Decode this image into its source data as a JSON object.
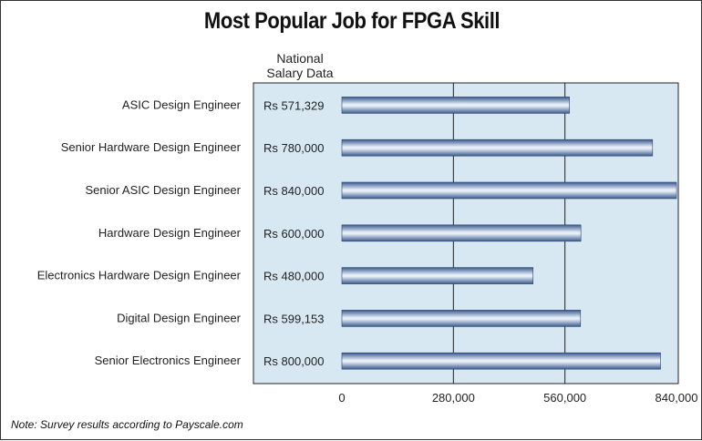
{
  "title": "Most Popular Job for FPGA Skill",
  "column_header": {
    "line1": "National",
    "line2": "Salary Data"
  },
  "footnote": "Note: Survey results according to Payscale.com",
  "colors": {
    "panel_background": "#d8e8f2",
    "bar_dark": "#3a5a8c",
    "bar_light": "#e6eef8",
    "gridline": "#222222"
  },
  "chart_data": {
    "type": "bar",
    "orientation": "horizontal",
    "title": "Most Popular Job for FPGA Skill",
    "categories": [
      "ASIC Design Engineer",
      "Senior Hardware Design Engineer",
      "Senior ASIC Design Engineer",
      "Hardware Design Engineer",
      "Electronics Hardware Design Engineer",
      "Digital Design Engineer",
      "Senior Electronics Engineer"
    ],
    "values": [
      571329,
      780000,
      840000,
      600000,
      480000,
      599153,
      800000
    ],
    "value_labels": [
      "Rs 571,329",
      "Rs 780,000",
      "Rs 840,000",
      "Rs 600,000",
      "Rs 480,000",
      "Rs 599,153",
      "Rs 800,000"
    ],
    "xlim": [
      0,
      840000
    ],
    "xticks": [
      0,
      280000,
      560000,
      840000
    ],
    "xtick_labels": [
      "0",
      "280,000",
      "560,000",
      "840,000"
    ],
    "grid": true
  }
}
